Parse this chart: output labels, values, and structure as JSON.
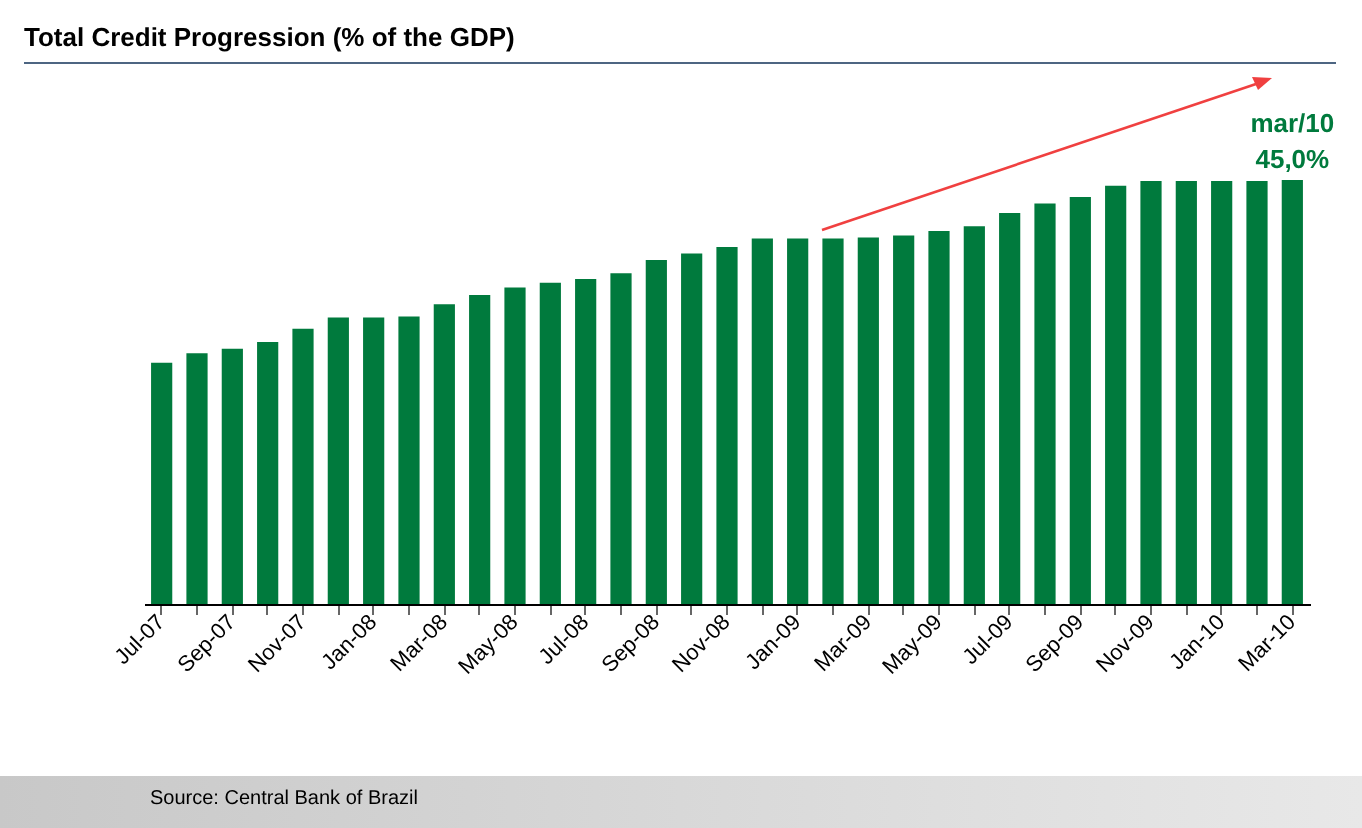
{
  "chart_data": {
    "type": "bar",
    "title": "Total Credit Progression (% of the GDP)",
    "categories": [
      "Jul-07",
      null,
      "Sep-07",
      null,
      "Nov-07",
      null,
      "Jan-08",
      null,
      "Mar-08",
      null,
      "May-08",
      null,
      "Jul-08",
      null,
      "Sep-08",
      null,
      "Nov-08",
      null,
      "Jan-09",
      null,
      "Mar-09",
      null,
      "May-09",
      null,
      "Jul-09",
      null,
      "Sep-09",
      null,
      "Nov-09",
      null,
      "Jan-10",
      null,
      "Mar-10"
    ],
    "values": [
      25.6,
      26.6,
      27.1,
      27.8,
      29.2,
      30.4,
      30.4,
      30.5,
      31.8,
      32.8,
      33.6,
      34.1,
      34.5,
      35.1,
      36.5,
      37.2,
      37.9,
      38.8,
      38.8,
      38.8,
      38.9,
      39.1,
      39.6,
      40.1,
      41.5,
      42.5,
      43.2,
      44.4,
      44.9,
      44.9,
      44.9,
      44.9,
      45.0
    ],
    "value_labels": [
      null,
      null,
      null,
      null,
      null,
      null,
      null,
      null,
      null,
      null,
      null,
      null,
      null,
      null,
      null,
      null,
      null,
      null,
      null,
      null,
      null,
      null,
      null,
      null,
      null,
      null,
      null,
      null,
      null,
      null,
      null,
      null,
      "45,0%"
    ],
    "color": "#007a3d",
    "tick_labels": "x",
    "grid": false,
    "annotations": [
      {
        "text": "mar/10",
        "x": "Mar-10",
        "y": 45.0
      },
      "Source: Central Bank of Brazil"
    ]
  }
}
